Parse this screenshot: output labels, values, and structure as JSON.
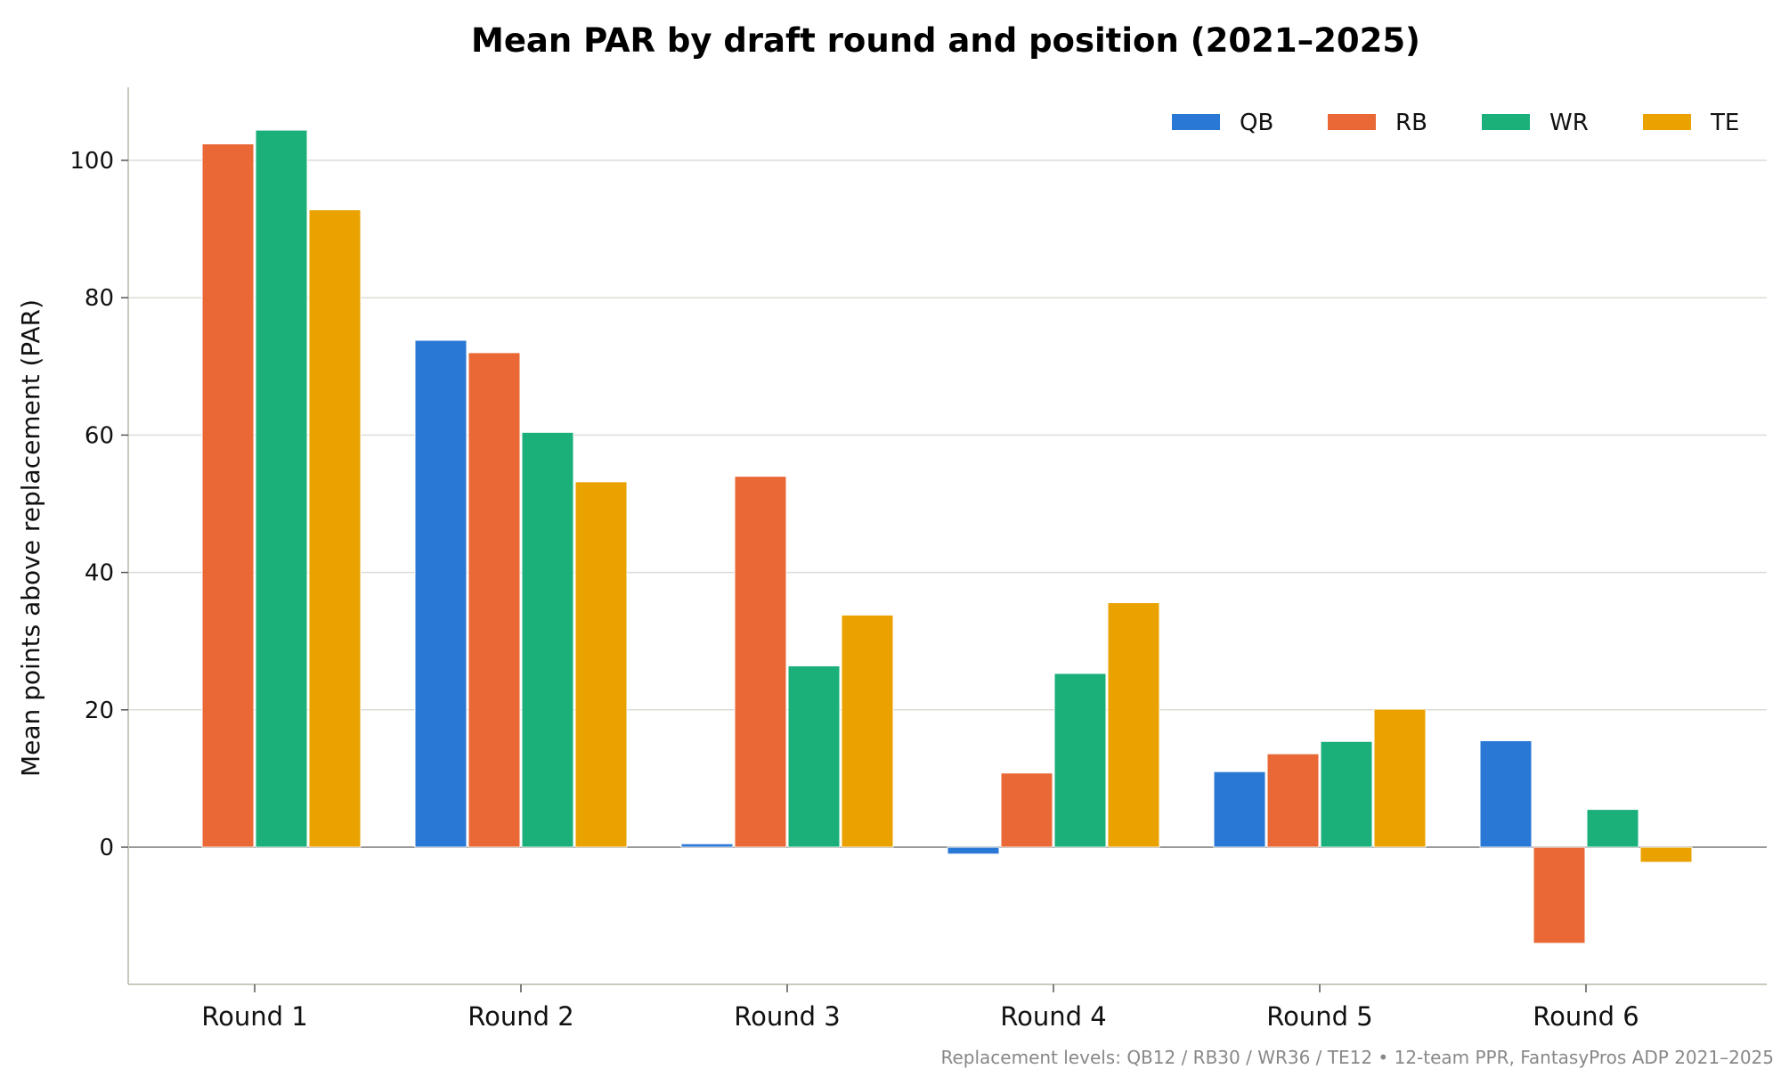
{
  "chart_data": {
    "type": "bar",
    "title": "Mean PAR by draft round and position (2021–2025)",
    "xlabel": "",
    "ylabel": "Mean points above replacement (PAR)",
    "categories": [
      "Round 1",
      "Round 2",
      "Round 3",
      "Round 4",
      "Round 5",
      "Round 6"
    ],
    "series": [
      {
        "name": "QB",
        "color": "#2a78d6",
        "values": [
          null,
          73.8,
          0.5,
          -1.0,
          11.0,
          15.5
        ]
      },
      {
        "name": "RB",
        "color": "#e96836",
        "values": [
          102.4,
          72.0,
          54.0,
          10.8,
          13.6,
          -14.0
        ]
      },
      {
        "name": "WR",
        "color": "#1baf79",
        "values": [
          104.4,
          60.4,
          26.4,
          25.3,
          15.4,
          5.5
        ]
      },
      {
        "name": "TE",
        "color": "#eaa200",
        "values": [
          92.8,
          53.2,
          33.8,
          35.6,
          20.1,
          -2.2
        ]
      }
    ],
    "yticks": [
      0,
      20,
      40,
      60,
      80,
      100
    ],
    "ylim": [
      -20,
      110
    ],
    "grid": "horizontal",
    "legend_position": "top-right",
    "footnote": "Replacement levels: QB12 / RB30 / WR36 / TE12  •  12-team PPR, FantasyPros ADP 2021–2025"
  }
}
